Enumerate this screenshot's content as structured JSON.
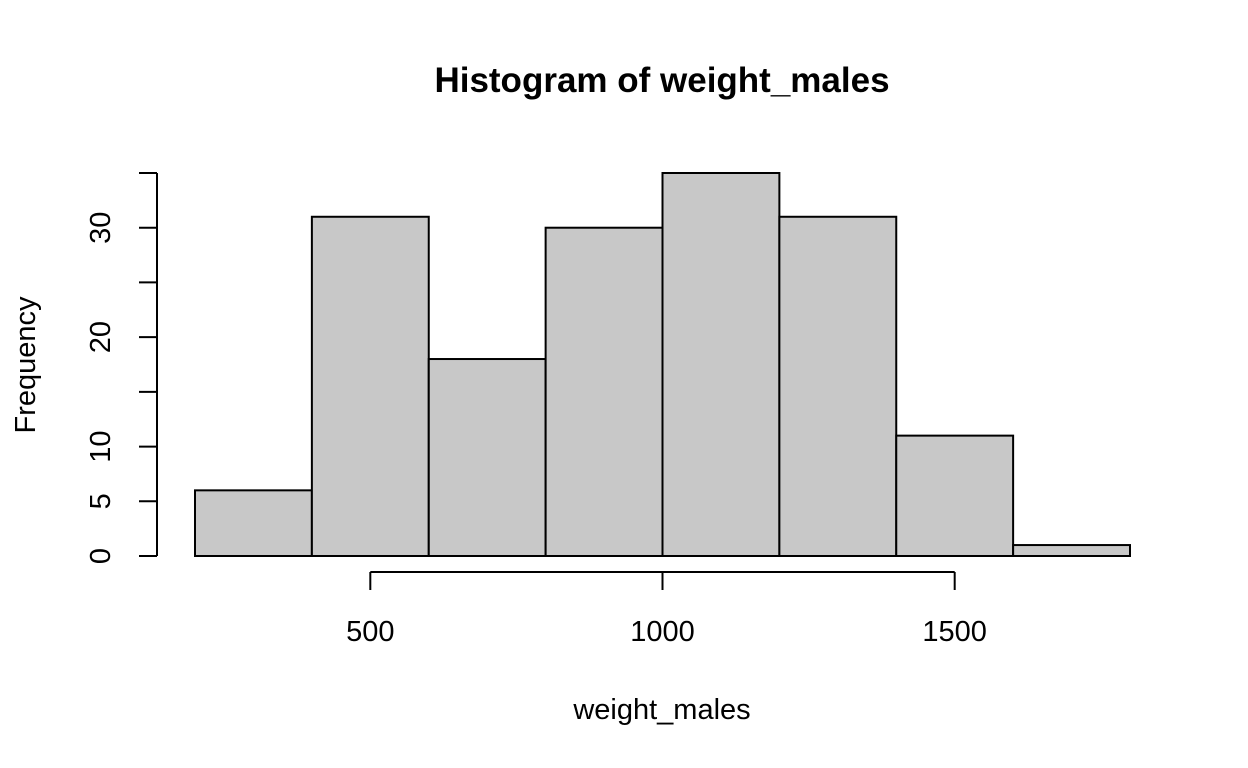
{
  "chart_data": {
    "type": "bar",
    "title": "Histogram of weight_males",
    "xlabel": "weight_males",
    "ylabel": "Frequency",
    "bins": [
      {
        "start": 200,
        "end": 400,
        "count": 6
      },
      {
        "start": 400,
        "end": 600,
        "count": 31
      },
      {
        "start": 600,
        "end": 800,
        "count": 18
      },
      {
        "start": 800,
        "end": 1000,
        "count": 30
      },
      {
        "start": 1000,
        "end": 1200,
        "count": 35
      },
      {
        "start": 1200,
        "end": 1400,
        "count": 31
      },
      {
        "start": 1400,
        "end": 1600,
        "count": 11
      },
      {
        "start": 1600,
        "end": 1800,
        "count": 1
      }
    ],
    "x_ticks": [
      500,
      1000,
      1500
    ],
    "x_tick_labels": [
      "500",
      "1000",
      "1500"
    ],
    "y_ticks": [
      0,
      5,
      10,
      15,
      20,
      25,
      30,
      35
    ],
    "y_tick_labels": [
      "0",
      "5",
      "10",
      "",
      "20",
      "",
      "30",
      ""
    ],
    "xlim": [
      200,
      1800
    ],
    "ylim": [
      0,
      35
    ],
    "bar_fill": "#c8c8c8",
    "bar_stroke": "#000000",
    "grid": false,
    "legend": "none"
  }
}
